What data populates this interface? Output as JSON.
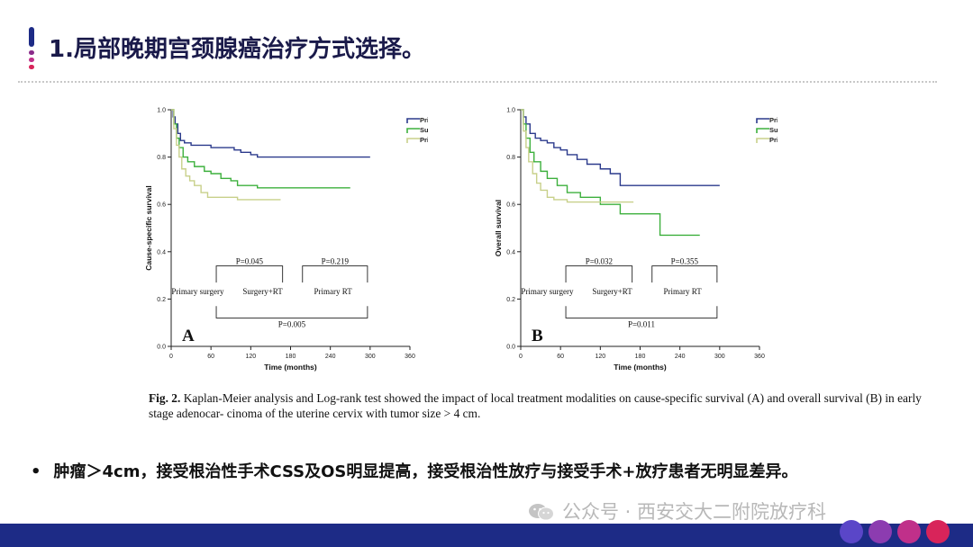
{
  "slide": {
    "title": "1.局部晚期宫颈腺癌治疗方式选择。",
    "bullet_text": "肿瘤＞4cm，接受根治性手术CSS及OS明显提高，接受根治性放疗与接受手术+放疗患者无明显差异。",
    "watermark": "公众号 · 西安交大二附院放疗科",
    "colors": {
      "title": "#1a1a4a",
      "accent_bar": [
        "#d8245a",
        "#8a2c8a",
        "#3a3aa0"
      ],
      "footer": "#1d2b86",
      "footer_circles": [
        "#d8245a",
        "#c0308a",
        "#8c3cb0",
        "#5a46c8"
      ]
    }
  },
  "caption": {
    "label": "Fig. 2.",
    "text": "Kaplan-Meier analysis and Log-rank test showed the impact of local treatment modalities on cause-specific survival (A) and overall survival (B) in early stage adenocar- cinoma of the uterine cervix with tumor size > 4 cm."
  },
  "chart_data": [
    {
      "type": "line",
      "panel_label": "A",
      "xlabel": "Time (months)",
      "ylabel": "Cause-specific survival",
      "xlim": [
        0,
        360
      ],
      "ylim": [
        0,
        1.0
      ],
      "x_ticks": [
        "0",
        "60",
        "120",
        "180",
        "240",
        "300",
        "360"
      ],
      "y_ticks": [
        "0.0",
        "0.2",
        "0.4",
        "0.6",
        "0.8",
        "1.0"
      ],
      "legend_position": "top-right",
      "series": [
        {
          "name": "Primary surgery",
          "color": "#2b3a8c",
          "points": [
            [
              0,
              1.0
            ],
            [
              3,
              0.97
            ],
            [
              6,
              0.94
            ],
            [
              10,
              0.9
            ],
            [
              14,
              0.87
            ],
            [
              20,
              0.86
            ],
            [
              30,
              0.85
            ],
            [
              60,
              0.84
            ],
            [
              95,
              0.83
            ],
            [
              105,
              0.82
            ],
            [
              120,
              0.81
            ],
            [
              130,
              0.8
            ],
            [
              300,
              0.8
            ]
          ]
        },
        {
          "name": "Surgery+RT",
          "color": "#3db03d",
          "points": [
            [
              0,
              1.0
            ],
            [
              4,
              0.94
            ],
            [
              8,
              0.88
            ],
            [
              12,
              0.84
            ],
            [
              18,
              0.8
            ],
            [
              25,
              0.78
            ],
            [
              35,
              0.76
            ],
            [
              50,
              0.74
            ],
            [
              60,
              0.73
            ],
            [
              75,
              0.71
            ],
            [
              90,
              0.7
            ],
            [
              100,
              0.68
            ],
            [
              130,
              0.67
            ],
            [
              270,
              0.67
            ]
          ]
        },
        {
          "name": "Primary RT",
          "color": "#c8d08a",
          "points": [
            [
              0,
              1.0
            ],
            [
              4,
              0.92
            ],
            [
              8,
              0.85
            ],
            [
              12,
              0.8
            ],
            [
              16,
              0.75
            ],
            [
              22,
              0.72
            ],
            [
              28,
              0.7
            ],
            [
              35,
              0.68
            ],
            [
              45,
              0.65
            ],
            [
              55,
              0.63
            ],
            [
              70,
              0.63
            ],
            [
              100,
              0.62
            ],
            [
              165,
              0.62
            ]
          ]
        }
      ],
      "annotations": {
        "groups": [
          "Primary surgery",
          "Surgery+RT",
          "Primary RT"
        ],
        "p_values": [
          "P=0.045",
          "P=0.219",
          "P=0.005"
        ]
      }
    },
    {
      "type": "line",
      "panel_label": "B",
      "xlabel": "Time (months)",
      "ylabel": "Overall survival",
      "xlim": [
        0,
        360
      ],
      "ylim": [
        0,
        1.0
      ],
      "x_ticks": [
        "0",
        "60",
        "120",
        "180",
        "240",
        "300",
        "360"
      ],
      "y_ticks": [
        "0.0",
        "0.2",
        "0.4",
        "0.6",
        "0.8",
        "1.0"
      ],
      "legend_position": "top-right",
      "series": [
        {
          "name": "Primary surgery",
          "color": "#2b3a8c",
          "points": [
            [
              0,
              1.0
            ],
            [
              4,
              0.97
            ],
            [
              8,
              0.94
            ],
            [
              14,
              0.9
            ],
            [
              22,
              0.88
            ],
            [
              30,
              0.87
            ],
            [
              40,
              0.86
            ],
            [
              50,
              0.84
            ],
            [
              60,
              0.83
            ],
            [
              70,
              0.81
            ],
            [
              85,
              0.79
            ],
            [
              100,
              0.77
            ],
            [
              120,
              0.75
            ],
            [
              135,
              0.73
            ],
            [
              150,
              0.68
            ],
            [
              300,
              0.68
            ]
          ]
        },
        {
          "name": "Surgery+RT",
          "color": "#3db03d",
          "points": [
            [
              0,
              1.0
            ],
            [
              4,
              0.94
            ],
            [
              8,
              0.88
            ],
            [
              14,
              0.82
            ],
            [
              20,
              0.78
            ],
            [
              30,
              0.74
            ],
            [
              40,
              0.71
            ],
            [
              55,
              0.68
            ],
            [
              70,
              0.65
            ],
            [
              90,
              0.63
            ],
            [
              120,
              0.6
            ],
            [
              150,
              0.56
            ],
            [
              200,
              0.56
            ],
            [
              210,
              0.47
            ],
            [
              270,
              0.47
            ]
          ]
        },
        {
          "name": "Primary RT",
          "color": "#c8d08a",
          "points": [
            [
              0,
              1.0
            ],
            [
              4,
              0.91
            ],
            [
              8,
              0.84
            ],
            [
              12,
              0.78
            ],
            [
              18,
              0.73
            ],
            [
              24,
              0.69
            ],
            [
              30,
              0.66
            ],
            [
              40,
              0.63
            ],
            [
              50,
              0.62
            ],
            [
              70,
              0.61
            ],
            [
              100,
              0.61
            ],
            [
              150,
              0.61
            ],
            [
              170,
              0.61
            ]
          ]
        }
      ],
      "annotations": {
        "groups": [
          "Primary surgery",
          "Surgery+RT",
          "Primary RT"
        ],
        "p_values": [
          "P=0.032",
          "P=0.355",
          "P=0.011"
        ]
      }
    }
  ]
}
